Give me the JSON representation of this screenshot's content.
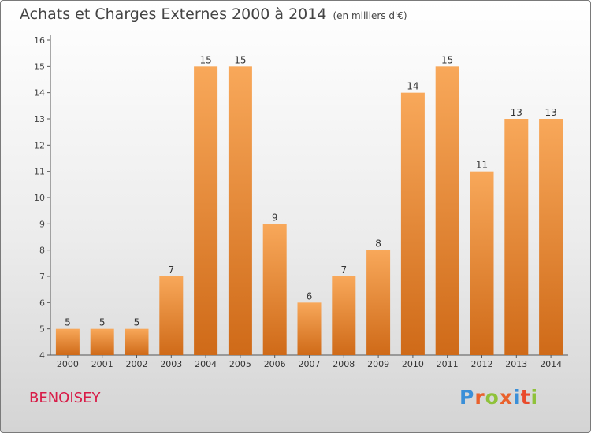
{
  "title": "Achats et Charges Externes 2000 à 2014",
  "subtitle": "(en milliers d'€)",
  "commune": "BENOISEY",
  "logo": {
    "text": "Proxiti",
    "colors": [
      "#3a8fd8",
      "#e9612c",
      "#8fc23a",
      "#e9612c",
      "#3a8fd8",
      "#e94b2c",
      "#8fc23a"
    ]
  },
  "colors": {
    "bar_light": "#f8a85a",
    "bar_dark": "#cf6a18",
    "axis": "#555555",
    "grid": "#dddddd",
    "commune": "#d81b47"
  },
  "chart_data": {
    "type": "bar",
    "categories": [
      "2000",
      "2001",
      "2002",
      "2003",
      "2004",
      "2005",
      "2006",
      "2007",
      "2008",
      "2009",
      "2010",
      "2011",
      "2012",
      "2013",
      "2014"
    ],
    "values": [
      5,
      5,
      5,
      7,
      15,
      15,
      9,
      6,
      7,
      8,
      14,
      15,
      11,
      13,
      13
    ],
    "yticks": [
      4,
      5,
      6,
      7,
      8,
      9,
      10,
      11,
      12,
      13,
      14,
      15,
      16
    ],
    "ylim": [
      4,
      16
    ],
    "title": "Achats et Charges Externes 2000 à 2014",
    "xlabel": "",
    "ylabel": "",
    "grid": false
  }
}
